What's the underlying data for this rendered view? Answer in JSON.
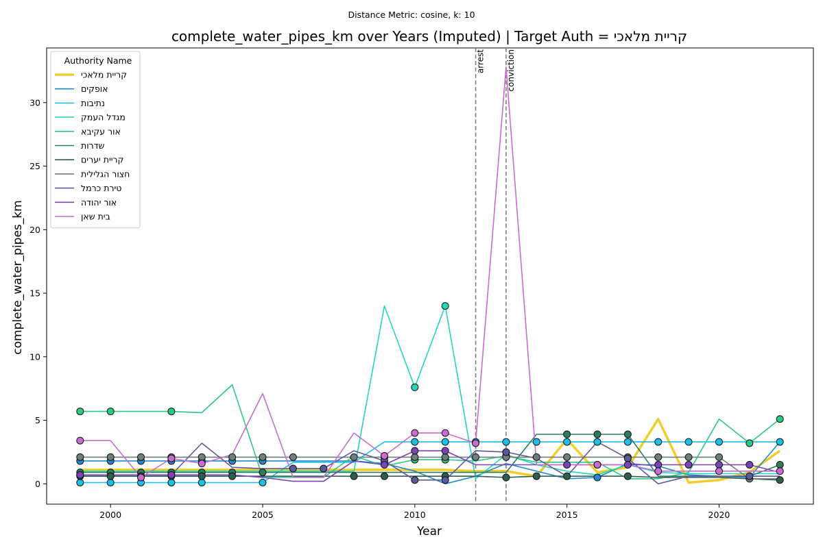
{
  "chart_data": {
    "type": "line",
    "suptitle": "Distance Metric: cosine, k: 10",
    "title": "complete_water_pipes_km over Years (Imputed) | Target Auth = קריית מלאכי",
    "xlabel": "Year",
    "ylabel": "complete_water_pipes_km",
    "xlim": [
      1997.9,
      2023.1
    ],
    "ylim": [
      -1.6,
      34.3
    ],
    "xticks": [
      2000,
      2005,
      2010,
      2015,
      2020
    ],
    "yticks": [
      0,
      5,
      10,
      15,
      20,
      25,
      30
    ],
    "grid": false,
    "legend": {
      "title": "Authority Name",
      "position": "top-left"
    },
    "events": [
      {
        "year": 2012,
        "label": "arrest"
      },
      {
        "year": 2013,
        "label": "conviction"
      }
    ],
    "x": [
      1999,
      2000,
      2001,
      2002,
      2003,
      2004,
      2005,
      2006,
      2007,
      2008,
      2009,
      2010,
      2011,
      2012,
      2013,
      2014,
      2015,
      2016,
      2017,
      2018,
      2019,
      2020,
      2021,
      2022
    ],
    "series": [
      {
        "name": "קריית מלאכי",
        "color": "#f2cd2c",
        "target": true,
        "values": [
          1.1,
          1.1,
          1.1,
          1.1,
          1.1,
          1.1,
          1.1,
          1.1,
          1.1,
          1.1,
          1.1,
          1.1,
          1.1,
          1.0,
          1.0,
          0.6,
          3.5,
          0.9,
          1.3,
          5.1,
          0.1,
          0.3,
          0.9,
          2.6
        ],
        "markers": []
      },
      {
        "name": "אופקים",
        "color": "#1f8ad1",
        "target": false,
        "values": [
          1.8,
          1.8,
          1.8,
          1.8,
          1.8,
          1.8,
          1.8,
          1.8,
          1.8,
          1.8,
          1.6,
          1.0,
          0.0,
          0.6,
          1.6,
          1.0,
          0.4,
          0.5,
          1.6,
          1.4,
          0.7,
          0.6,
          0.5,
          3.3
        ],
        "markers": [
          1999,
          2000,
          2001,
          2002,
          2003,
          2004,
          2005,
          2016
        ]
      },
      {
        "name": "נתיבות",
        "color": "#1bbfe8",
        "target": false,
        "values": [
          0.1,
          0.1,
          0.1,
          0.1,
          0.1,
          0.1,
          0.1,
          1.7,
          1.7,
          1.7,
          3.3,
          3.3,
          3.3,
          3.3,
          3.3,
          3.3,
          3.3,
          3.3,
          3.3,
          3.3,
          3.3,
          3.3,
          3.3,
          3.3
        ],
        "markers": [
          1999,
          2000,
          2001,
          2002,
          2003,
          2005,
          2010,
          2011,
          2012,
          2013,
          2014,
          2015,
          2016,
          2017,
          2018,
          2019,
          2020,
          2022
        ]
      },
      {
        "name": "מגדל העמק",
        "color": "#22d6b8",
        "target": false,
        "values": [
          1.0,
          1.0,
          1.0,
          1.0,
          1.0,
          1.0,
          1.0,
          1.0,
          1.0,
          1.0,
          14.0,
          7.6,
          14.0,
          0.4,
          2.3,
          1.5,
          1.0,
          0.7,
          1.5,
          0.9,
          0.8,
          0.8,
          0.8,
          0.8
        ],
        "markers": [
          2010,
          2011
        ]
      },
      {
        "name": "אור עקיבא",
        "color": "#2bc983",
        "target": false,
        "values": [
          5.7,
          5.7,
          5.7,
          5.7,
          5.6,
          7.8,
          0.5,
          0.5,
          0.5,
          2.2,
          1.4,
          1.9,
          1.9,
          1.8,
          2.2,
          1.7,
          1.7,
          1.7,
          0.4,
          0.4,
          0.9,
          5.1,
          3.2,
          5.1
        ],
        "markers": [
          1999,
          2000,
          2002,
          2010,
          2011,
          2013,
          2021,
          2022
        ]
      },
      {
        "name": "שדרות",
        "color": "#2a7d60",
        "target": false,
        "values": [
          0.9,
          0.9,
          0.9,
          0.9,
          0.9,
          0.9,
          0.9,
          0.9,
          0.9,
          0.9,
          0.9,
          0.9,
          0.9,
          0.9,
          0.9,
          3.9,
          3.9,
          3.9,
          3.9,
          0.6,
          0.6,
          0.6,
          0.6,
          1.5
        ],
        "markers": [
          1999,
          2000,
          2001,
          2002,
          2003,
          2004,
          2005,
          2015,
          2016,
          2017,
          2022
        ]
      },
      {
        "name": "קריית יערים",
        "color": "#2f5d4e",
        "target": false,
        "values": [
          0.6,
          0.6,
          0.6,
          0.6,
          0.6,
          0.6,
          0.6,
          0.6,
          0.6,
          0.6,
          0.6,
          0.6,
          0.6,
          0.6,
          0.5,
          0.6,
          0.6,
          0.6,
          0.6,
          0.5,
          0.5,
          0.5,
          0.4,
          0.3
        ],
        "markers": [
          1999,
          2000,
          2001,
          2002,
          2003,
          2004,
          2008,
          2009,
          2011,
          2013,
          2014,
          2015,
          2017,
          2022
        ]
      },
      {
        "name": "חצור הגלילית",
        "color": "#6f7f7c",
        "target": false,
        "values": [
          2.1,
          2.1,
          2.1,
          2.1,
          2.1,
          2.1,
          2.1,
          2.1,
          2.1,
          2.1,
          2.1,
          2.1,
          2.1,
          2.1,
          2.1,
          2.1,
          2.1,
          2.1,
          2.1,
          2.1,
          2.1,
          2.1,
          0.4,
          0.4
        ],
        "markers": [
          1999,
          2000,
          2001,
          2002,
          2003,
          2004,
          2005,
          2006,
          2008,
          2009,
          2010,
          2011,
          2012,
          2013,
          2014,
          2015,
          2017,
          2018,
          2019,
          2020,
          2021
        ]
      },
      {
        "name": "טירת כרמל",
        "color": "#5b5a9c",
        "target": false,
        "values": [
          0.7,
          0.7,
          0.7,
          0.7,
          3.2,
          1.3,
          1.2,
          1.2,
          1.2,
          2.6,
          1.8,
          0.3,
          0.3,
          2.6,
          2.5,
          2.0,
          0.6,
          3.3,
          2.0,
          0.0,
          0.6,
          0.6,
          0.6,
          0.6
        ],
        "markers": [
          1999,
          2006,
          2007,
          2009,
          2010,
          2011,
          2013,
          2017,
          2021
        ]
      },
      {
        "name": "אור יהודה",
        "color": "#7a44b8",
        "target": false,
        "values": [
          0.7,
          0.7,
          0.7,
          0.7,
          0.7,
          0.7,
          0.5,
          0.2,
          0.2,
          1.8,
          1.5,
          2.6,
          2.6,
          1.5,
          1.5,
          1.5,
          1.5,
          1.5,
          1.5,
          1.5,
          1.5,
          1.5,
          1.5,
          0.9
        ],
        "markers": [
          1999,
          2002,
          2009,
          2010,
          2011,
          2015,
          2016,
          2017,
          2018,
          2019,
          2020,
          2021
        ]
      },
      {
        "name": "בית שאן",
        "color": "#c86ccf",
        "target": false,
        "values": [
          3.4,
          3.4,
          0.5,
          2.0,
          1.6,
          2.3,
          7.1,
          0.5,
          0.5,
          4.0,
          2.2,
          4.0,
          4.0,
          3.2,
          32.8,
          1.5,
          1.5,
          1.5,
          1.5,
          1.0,
          1.0,
          1.0,
          1.0,
          1.0
        ],
        "markers": [
          1999,
          2001,
          2002,
          2003,
          2009,
          2010,
          2011,
          2012,
          2016,
          2018,
          2020,
          2022
        ]
      }
    ]
  }
}
